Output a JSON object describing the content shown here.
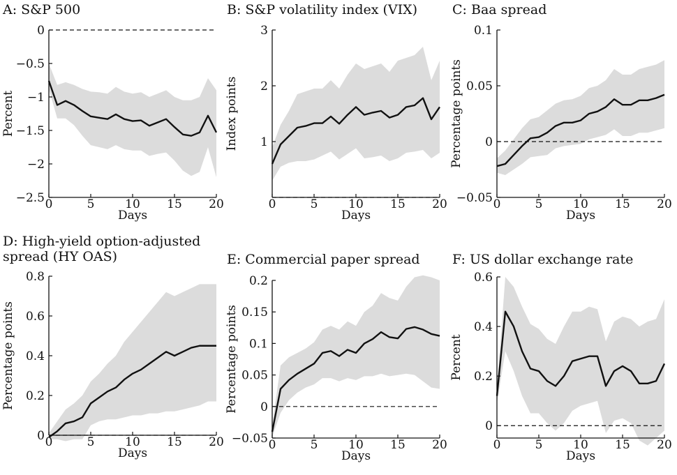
{
  "chart_data": [
    {
      "type": "line",
      "title": "A: S&P 500",
      "xlabel": "Days",
      "ylabel": "Percent",
      "xlim": [
        0,
        20
      ],
      "ylim": [
        -2.5,
        0
      ],
      "xticks": [
        0,
        5,
        10,
        15,
        20
      ],
      "yticks": [
        0,
        -0.5,
        -1,
        -1.5,
        -2,
        -2.5
      ],
      "ytick_labels": [
        "0",
        "−0.5",
        "−1",
        "−1.5",
        "−2",
        "−2.5"
      ],
      "zero_line": 0,
      "x": [
        0,
        1,
        2,
        3,
        4,
        5,
        6,
        7,
        8,
        9,
        10,
        11,
        12,
        13,
        14,
        15,
        16,
        17,
        18,
        19,
        20
      ],
      "series": [
        {
          "role": "estimate",
          "values": [
            -0.76,
            -1.12,
            -1.06,
            -1.12,
            -1.21,
            -1.29,
            -1.31,
            -1.33,
            -1.26,
            -1.33,
            -1.36,
            -1.35,
            -1.43,
            -1.38,
            -1.33,
            -1.45,
            -1.56,
            -1.58,
            -1.53,
            -1.28,
            -1.53
          ]
        },
        {
          "role": "lower",
          "values": [
            -0.88,
            -1.32,
            -1.32,
            -1.42,
            -1.58,
            -1.72,
            -1.75,
            -1.78,
            -1.72,
            -1.78,
            -1.8,
            -1.8,
            -1.88,
            -1.85,
            -1.83,
            -1.95,
            -2.1,
            -2.18,
            -2.12,
            -1.75,
            -2.2
          ]
        },
        {
          "role": "upper",
          "values": [
            -0.5,
            -0.82,
            -0.78,
            -0.82,
            -0.88,
            -0.92,
            -0.93,
            -0.95,
            -0.85,
            -0.92,
            -0.95,
            -0.93,
            -1.0,
            -0.95,
            -0.9,
            -1.0,
            -1.05,
            -1.05,
            -1.0,
            -0.72,
            -0.9
          ]
        }
      ]
    },
    {
      "type": "line",
      "title": "B: S&P volatility index (VIX)",
      "xlabel": "Days",
      "ylabel": "Index points",
      "xlim": [
        0,
        20
      ],
      "ylim": [
        0,
        3
      ],
      "xticks": [
        0,
        5,
        10,
        15,
        20
      ],
      "yticks": [
        1,
        2,
        3
      ],
      "ytick_labels": [
        "1",
        "2",
        "3"
      ],
      "zero_line": 0,
      "x": [
        0,
        1,
        2,
        3,
        4,
        5,
        6,
        7,
        8,
        9,
        10,
        11,
        12,
        13,
        14,
        15,
        16,
        17,
        18,
        19,
        20
      ],
      "series": [
        {
          "role": "estimate",
          "values": [
            0.6,
            0.95,
            1.1,
            1.25,
            1.28,
            1.33,
            1.33,
            1.45,
            1.32,
            1.48,
            1.62,
            1.48,
            1.52,
            1.55,
            1.43,
            1.48,
            1.62,
            1.65,
            1.78,
            1.4,
            1.62
          ]
        },
        {
          "role": "lower",
          "values": [
            0.3,
            0.55,
            0.62,
            0.65,
            0.65,
            0.68,
            0.75,
            0.82,
            0.68,
            0.78,
            0.88,
            0.7,
            0.72,
            0.75,
            0.65,
            0.7,
            0.8,
            0.82,
            0.85,
            0.7,
            0.8
          ]
        },
        {
          "role": "upper",
          "values": [
            0.9,
            1.3,
            1.55,
            1.85,
            1.9,
            1.95,
            1.95,
            2.1,
            1.95,
            2.2,
            2.4,
            2.3,
            2.35,
            2.4,
            2.25,
            2.45,
            2.5,
            2.55,
            2.7,
            2.1,
            2.45
          ]
        }
      ]
    },
    {
      "type": "line",
      "title": "C: Baa spread",
      "xlabel": "Days",
      "ylabel": "Percentage points",
      "xlim": [
        0,
        20
      ],
      "ylim": [
        -0.05,
        0.1
      ],
      "xticks": [
        0,
        5,
        10,
        15,
        20
      ],
      "yticks": [
        -0.05,
        0,
        0.05,
        0.1
      ],
      "ytick_labels": [
        "−0.05",
        "0",
        "0.05",
        "0.1"
      ],
      "zero_line": 0,
      "x": [
        0,
        1,
        2,
        3,
        4,
        5,
        6,
        7,
        8,
        9,
        10,
        11,
        12,
        13,
        14,
        15,
        16,
        17,
        18,
        19,
        20
      ],
      "series": [
        {
          "role": "estimate",
          "values": [
            -0.022,
            -0.02,
            -0.012,
            -0.004,
            0.003,
            0.004,
            0.008,
            0.014,
            0.017,
            0.017,
            0.019,
            0.025,
            0.027,
            0.031,
            0.038,
            0.033,
            0.033,
            0.037,
            0.037,
            0.039,
            0.042
          ]
        },
        {
          "role": "lower",
          "values": [
            -0.028,
            -0.03,
            -0.025,
            -0.02,
            -0.014,
            -0.013,
            -0.012,
            -0.006,
            -0.004,
            -0.003,
            -0.002,
            0.002,
            0.004,
            0.006,
            0.011,
            0.005,
            0.005,
            0.008,
            0.008,
            0.01,
            0.012
          ]
        },
        {
          "role": "upper",
          "values": [
            -0.015,
            -0.008,
            0.002,
            0.012,
            0.02,
            0.022,
            0.028,
            0.034,
            0.037,
            0.038,
            0.041,
            0.048,
            0.05,
            0.055,
            0.065,
            0.06,
            0.06,
            0.065,
            0.067,
            0.069,
            0.073
          ]
        }
      ]
    },
    {
      "type": "line",
      "title": "D: High-yield option-adjusted spread (HY OAS)",
      "title_lines": [
        "D: High-yield option-adjusted",
        "spread (HY OAS)"
      ],
      "xlabel": "Days",
      "ylabel": "Percentage points",
      "xlim": [
        0,
        20
      ],
      "ylim": [
        0,
        0.8
      ],
      "xticks": [
        0,
        5,
        10,
        15,
        20
      ],
      "yticks": [
        0,
        0.2,
        0.4,
        0.6,
        0.8
      ],
      "ytick_labels": [
        "0",
        "0.2",
        "0.4",
        "0.6",
        "0.8"
      ],
      "zero_line": 0,
      "x": [
        0,
        1,
        2,
        3,
        4,
        5,
        6,
        7,
        8,
        9,
        10,
        11,
        12,
        13,
        14,
        15,
        16,
        17,
        18,
        19,
        20
      ],
      "series": [
        {
          "role": "estimate",
          "values": [
            -0.01,
            0.02,
            0.06,
            0.07,
            0.09,
            0.16,
            0.19,
            0.22,
            0.24,
            0.28,
            0.31,
            0.33,
            0.36,
            0.39,
            0.42,
            0.4,
            0.42,
            0.44,
            0.45,
            0.45,
            0.45
          ]
        },
        {
          "role": "lower",
          "values": [
            -0.02,
            -0.02,
            -0.03,
            -0.02,
            -0.02,
            0.05,
            0.07,
            0.08,
            0.08,
            0.09,
            0.1,
            0.1,
            0.11,
            0.11,
            0.12,
            0.12,
            0.13,
            0.14,
            0.15,
            0.17,
            0.17
          ]
        },
        {
          "role": "upper",
          "values": [
            0.01,
            0.07,
            0.13,
            0.16,
            0.2,
            0.27,
            0.31,
            0.36,
            0.4,
            0.47,
            0.52,
            0.57,
            0.62,
            0.67,
            0.72,
            0.7,
            0.72,
            0.74,
            0.76,
            0.76,
            0.76
          ]
        }
      ]
    },
    {
      "type": "line",
      "title": "E: Commercial paper spread",
      "xlabel": "Days",
      "ylabel": "Percentage points",
      "xlim": [
        0,
        20
      ],
      "ylim": [
        -0.05,
        0.2
      ],
      "xticks": [
        0,
        5,
        10,
        15,
        20
      ],
      "yticks": [
        -0.05,
        0,
        0.05,
        0.1,
        0.15,
        0.2
      ],
      "ytick_labels": [
        "−0.05",
        "0",
        "0.05",
        "0.1",
        "0.15",
        "0.2"
      ],
      "zero_line": 0,
      "x": [
        0,
        1,
        2,
        3,
        4,
        5,
        6,
        7,
        8,
        9,
        10,
        11,
        12,
        13,
        14,
        15,
        16,
        17,
        18,
        19,
        20
      ],
      "series": [
        {
          "role": "estimate",
          "values": [
            -0.04,
            0.028,
            0.042,
            0.052,
            0.06,
            0.068,
            0.085,
            0.088,
            0.08,
            0.09,
            0.085,
            0.1,
            0.107,
            0.118,
            0.11,
            0.108,
            0.123,
            0.126,
            0.122,
            0.115,
            0.112
          ]
        },
        {
          "role": "lower",
          "values": [
            -0.048,
            -0.01,
            0.01,
            0.022,
            0.03,
            0.035,
            0.045,
            0.045,
            0.04,
            0.045,
            0.042,
            0.048,
            0.048,
            0.052,
            0.048,
            0.05,
            0.052,
            0.05,
            0.04,
            0.03,
            0.028
          ]
        },
        {
          "role": "upper",
          "values": [
            -0.03,
            0.065,
            0.078,
            0.085,
            0.092,
            0.102,
            0.122,
            0.128,
            0.122,
            0.135,
            0.128,
            0.15,
            0.16,
            0.18,
            0.172,
            0.168,
            0.19,
            0.205,
            0.208,
            0.205,
            0.2
          ]
        }
      ]
    },
    {
      "type": "line",
      "title": "F: US dollar exchange rate",
      "xlabel": "Days",
      "ylabel": "Percent",
      "xlim": [
        0,
        20
      ],
      "ylim": [
        -0.05,
        0.6
      ],
      "xticks": [
        0,
        5,
        10,
        15,
        20
      ],
      "yticks": [
        0,
        0.2,
        0.4,
        0.6
      ],
      "ytick_labels": [
        "0",
        "0.2",
        "0.4",
        "0.6"
      ],
      "zero_line": 0,
      "x": [
        0,
        1,
        2,
        3,
        4,
        5,
        6,
        7,
        8,
        9,
        10,
        11,
        12,
        13,
        14,
        15,
        16,
        17,
        18,
        19,
        20
      ],
      "series": [
        {
          "role": "estimate",
          "values": [
            0.12,
            0.46,
            0.4,
            0.3,
            0.23,
            0.22,
            0.18,
            0.16,
            0.2,
            0.26,
            0.27,
            0.28,
            0.28,
            0.16,
            0.22,
            0.24,
            0.22,
            0.17,
            0.17,
            0.18,
            0.25
          ]
        },
        {
          "role": "lower",
          "values": [
            0.09,
            0.3,
            0.22,
            0.12,
            0.05,
            0.05,
            0.01,
            -0.02,
            0.01,
            0.06,
            0.08,
            0.09,
            0.1,
            -0.03,
            0.02,
            0.03,
            0.01,
            -0.06,
            -0.08,
            -0.05,
            -0.02
          ]
        },
        {
          "role": "upper",
          "values": [
            0.15,
            0.6,
            0.56,
            0.48,
            0.41,
            0.39,
            0.35,
            0.33,
            0.4,
            0.46,
            0.46,
            0.48,
            0.47,
            0.34,
            0.42,
            0.44,
            0.43,
            0.4,
            0.42,
            0.43,
            0.51
          ]
        }
      ]
    }
  ]
}
